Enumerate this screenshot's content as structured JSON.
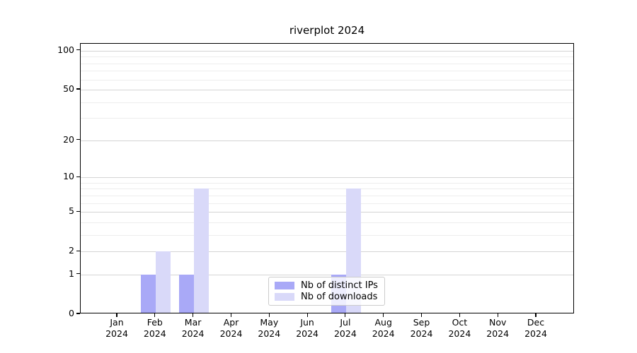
{
  "chart_data": {
    "type": "bar",
    "title": "riverplot 2024",
    "categories": [
      "Jan",
      "Feb",
      "Mar",
      "Apr",
      "May",
      "Jun",
      "Jul",
      "Aug",
      "Sep",
      "Oct",
      "Nov",
      "Dec"
    ],
    "year_label": "2024",
    "series": [
      {
        "name": "Nb of distinct IPs",
        "color": "#a9a9f7",
        "values": [
          0,
          1,
          1,
          0,
          0,
          0,
          1,
          0,
          0,
          0,
          0,
          0
        ]
      },
      {
        "name": "Nb of downloads",
        "color": "#d9d9f9",
        "values": [
          0,
          2,
          8,
          0,
          0,
          0,
          8,
          0,
          0,
          0,
          0,
          0
        ]
      }
    ],
    "yticks": [
      0,
      1,
      2,
      5,
      10,
      20,
      50,
      100
    ],
    "minor_gridlines": [
      3,
      4,
      6,
      7,
      8,
      9,
      30,
      40,
      60,
      70,
      80,
      90
    ],
    "scale": "log1p",
    "ylim": [
      0,
      113
    ],
    "xlabel": "",
    "ylabel": "",
    "grid": true,
    "legend_position": "lower-center-inside"
  }
}
